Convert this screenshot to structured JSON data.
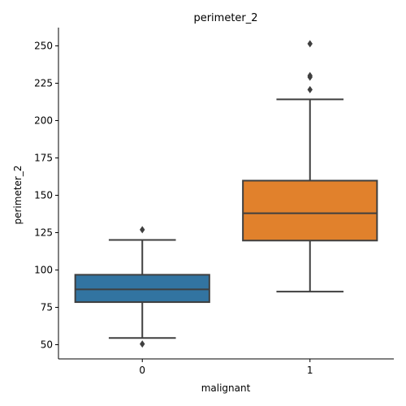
{
  "chart_data": {
    "type": "box",
    "title": "perimeter_2",
    "xlabel": "malignant",
    "ylabel": "perimeter_2",
    "ylim": [
      40,
      262
    ],
    "yticks": [
      50,
      75,
      100,
      125,
      150,
      175,
      200,
      225,
      250
    ],
    "grid": false,
    "categories": [
      "0",
      "1"
    ],
    "boxes": [
      {
        "category": "0",
        "color": "#3274a1",
        "q1": 78.5,
        "median": 87,
        "q3": 96.8,
        "whisker_low": 54.5,
        "whisker_high": 120.1,
        "outliers": [
          127,
          50.5
        ]
      },
      {
        "category": "1",
        "color": "#e1812c",
        "q1": 119.7,
        "median": 138,
        "q3": 159.8,
        "whisker_low": 85.5,
        "whisker_high": 214.2,
        "outliers": [
          220.7,
          229.1,
          230.1,
          251.4
        ]
      }
    ]
  }
}
